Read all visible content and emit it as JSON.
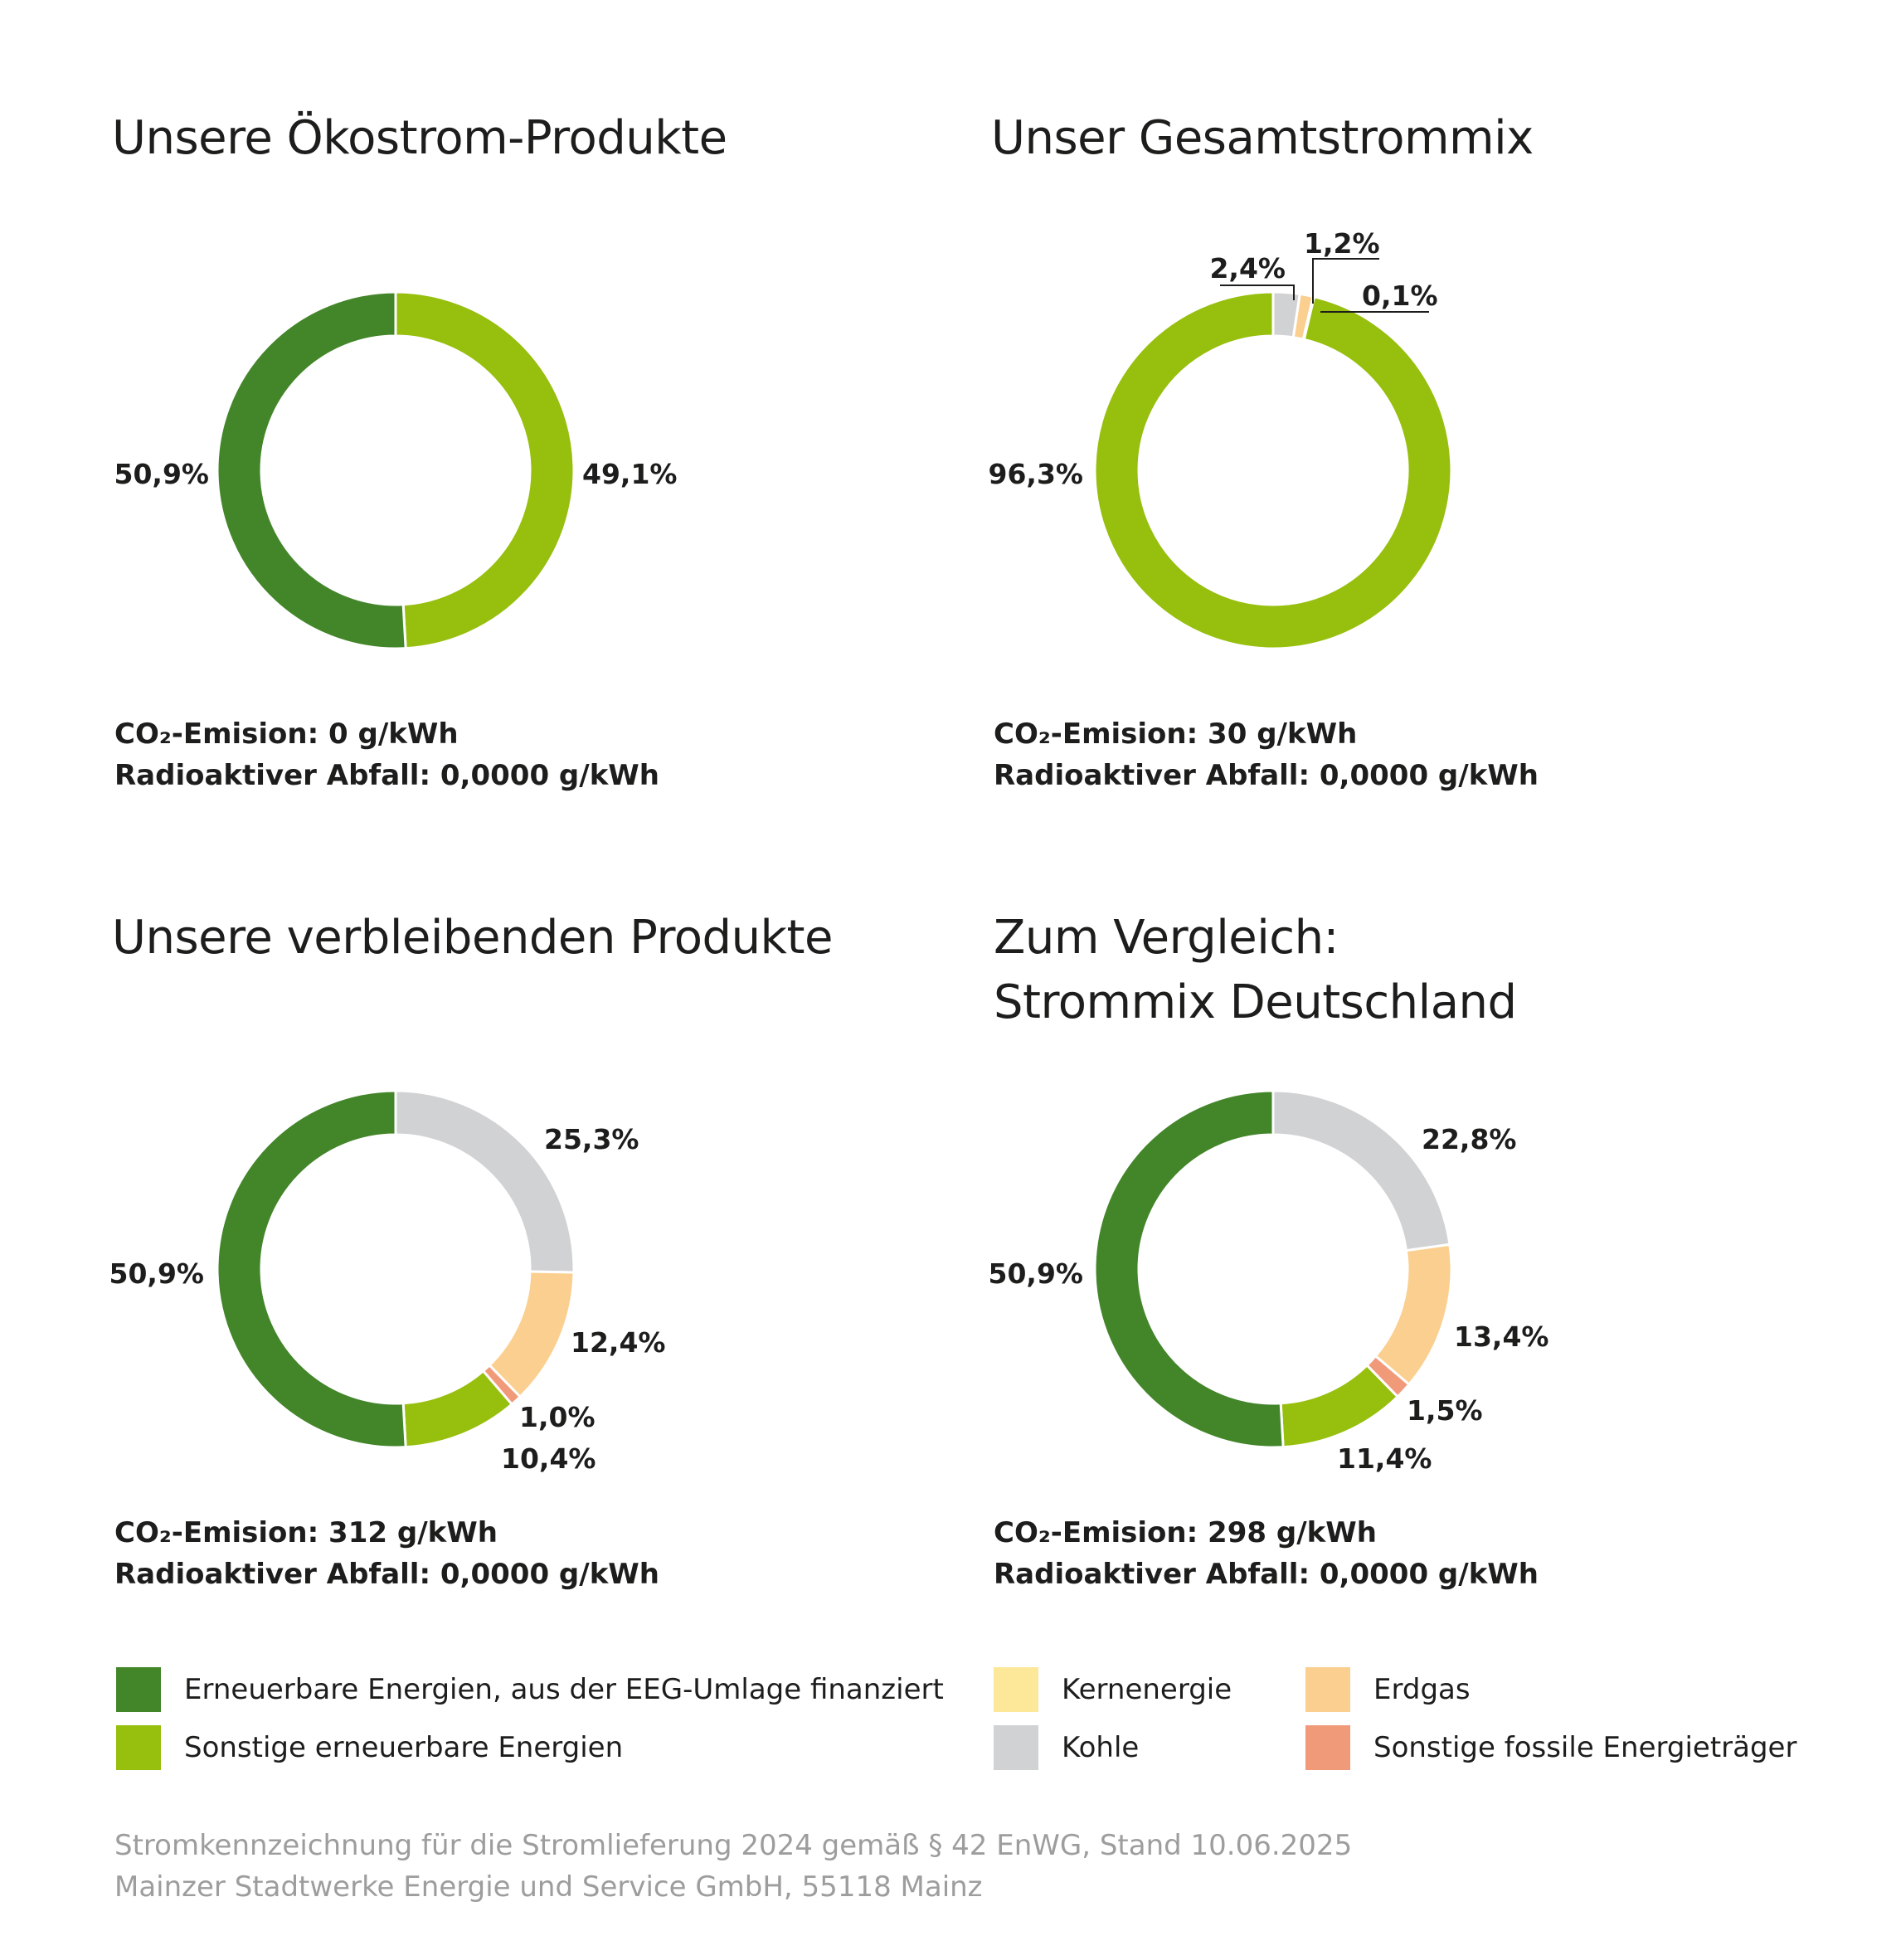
{
  "colors": {
    "eeg": "#43862a",
    "sonstige_ee": "#97bf0d",
    "kern": "#fde89a",
    "kohle": "#d1d2d4",
    "erdgas": "#fbcf8f",
    "fossil": "#f19a7a"
  },
  "chart_data": [
    {
      "type": "pie",
      "title": "Unsere Ökostrom-Produkte",
      "slices": [
        {
          "key": "sonstige_ee",
          "value": 49.1,
          "label": "49,1%"
        },
        {
          "key": "eeg",
          "value": 50.9,
          "label": "50,9%"
        }
      ],
      "co2": "CO₂-Emision: 0 g/kWh",
      "waste": "Radioaktiver Abfall: 0,0000 g/kWh"
    },
    {
      "type": "pie",
      "title": "Unser Gesamtstrommix",
      "slices": [
        {
          "key": "kohle",
          "value": 2.4,
          "label": "2,4%"
        },
        {
          "key": "erdgas",
          "value": 1.2,
          "label": "1,2%"
        },
        {
          "key": "fossil",
          "value": 0.1,
          "label": "0,1%"
        },
        {
          "key": "sonstige_ee",
          "value": 96.3,
          "label": "96,3%"
        }
      ],
      "co2": "CO₂-Emision: 30 g/kWh",
      "waste": "Radioaktiver Abfall: 0,0000 g/kWh"
    },
    {
      "type": "pie",
      "title": "Unsere verbleibenden Produkte",
      "slices": [
        {
          "key": "kohle",
          "value": 25.3,
          "label": "25,3%"
        },
        {
          "key": "erdgas",
          "value": 12.4,
          "label": "12,4%"
        },
        {
          "key": "fossil",
          "value": 1.0,
          "label": "1,0%"
        },
        {
          "key": "sonstige_ee",
          "value": 10.4,
          "label": "10,4%"
        },
        {
          "key": "eeg",
          "value": 50.9,
          "label": "50,9%"
        }
      ],
      "co2": "CO₂-Emision: 312 g/kWh",
      "waste": "Radioaktiver Abfall: 0,0000 g/kWh"
    },
    {
      "type": "pie",
      "title": "Zum Vergleich:",
      "title2": "Strommix Deutschland",
      "slices": [
        {
          "key": "kohle",
          "value": 22.8,
          "label": "22,8%"
        },
        {
          "key": "erdgas",
          "value": 13.4,
          "label": "13,4%"
        },
        {
          "key": "fossil",
          "value": 1.5,
          "label": "1,5%"
        },
        {
          "key": "sonstige_ee",
          "value": 11.4,
          "label": "11,4%"
        },
        {
          "key": "eeg",
          "value": 50.9,
          "label": "50,9%"
        }
      ],
      "co2": "CO₂-Emision: 298 g/kWh",
      "waste": "Radioaktiver Abfall: 0,0000 g/kWh"
    }
  ],
  "legend": [
    {
      "key": "eeg",
      "label": "Erneuerbare Energien, aus der EEG-Umlage finanziert"
    },
    {
      "key": "sonstige_ee",
      "label": "Sonstige erneuerbare Energien"
    },
    {
      "key": "kern",
      "label": "Kernenergie"
    },
    {
      "key": "kohle",
      "label": "Kohle"
    },
    {
      "key": "erdgas",
      "label": "Erdgas"
    },
    {
      "key": "fossil",
      "label": "Sonstige fossile Energieträger"
    }
  ],
  "footer": {
    "line1": "Stromkennzeichnung für die Stromlieferung 2024 gemäß § 42 EnWG, Stand 10.06.2025",
    "line2": "Mainzer Stadtwerke Energie und Service GmbH, 55118 Mainz"
  }
}
